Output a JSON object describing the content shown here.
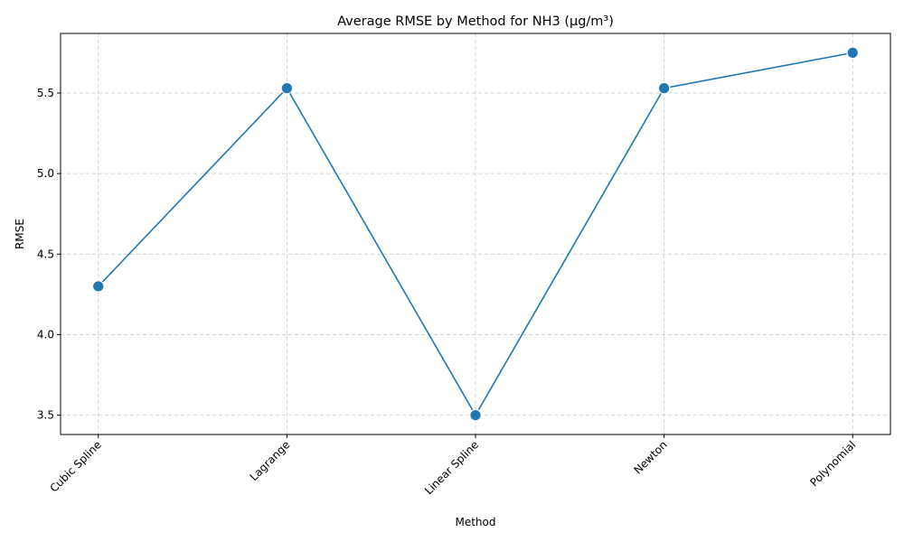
{
  "chart_data": {
    "type": "line",
    "title": "Average RMSE by Method for NH3 (µg/m³)",
    "xlabel": "Method",
    "ylabel": "RMSE",
    "categories": [
      "Cubic Spline",
      "Lagrange",
      "Linear Spline",
      "Newton",
      "Polynomial"
    ],
    "series": [
      {
        "values": [
          4.3,
          5.53,
          3.5,
          5.53,
          5.75
        ]
      }
    ],
    "ylim": [
      3.38,
      5.87
    ],
    "yticks": [
      3.5,
      4.0,
      4.5,
      5.0,
      5.5
    ],
    "ytick_labels": [
      "3.5",
      "4.0",
      "4.5",
      "5.0",
      "5.5"
    ],
    "grid": true,
    "line_color": "#1f77b4",
    "marker": "circle"
  }
}
